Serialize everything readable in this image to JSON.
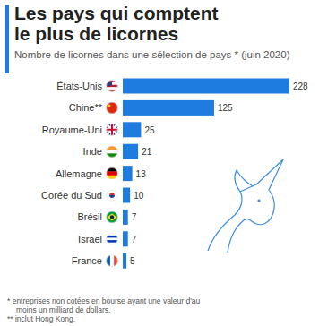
{
  "chart_data": {
    "type": "bar",
    "title": "Les pays qui comptent le plus de licornes",
    "subtitle": "Nombre de licornes dans une sélection de pays * (juin 2020)",
    "categories": [
      "États-Unis",
      "Chine**",
      "Royaume-Uni",
      "Inde",
      "Allemagne",
      "Corée du Sud",
      "Brésil",
      "Israël",
      "France"
    ],
    "values": [
      228,
      125,
      25,
      21,
      13,
      10,
      7,
      7,
      5
    ],
    "color": "#1e7be0",
    "orientation": "horizontal",
    "data_labels": true,
    "tick_labels": "y",
    "xlim": [
      0,
      228
    ],
    "notes": [
      "* entreprises non cotées en bourse ayant une valeur d'au moins un milliard de dollars.",
      "** inclut Hong Kong."
    ]
  }
}
